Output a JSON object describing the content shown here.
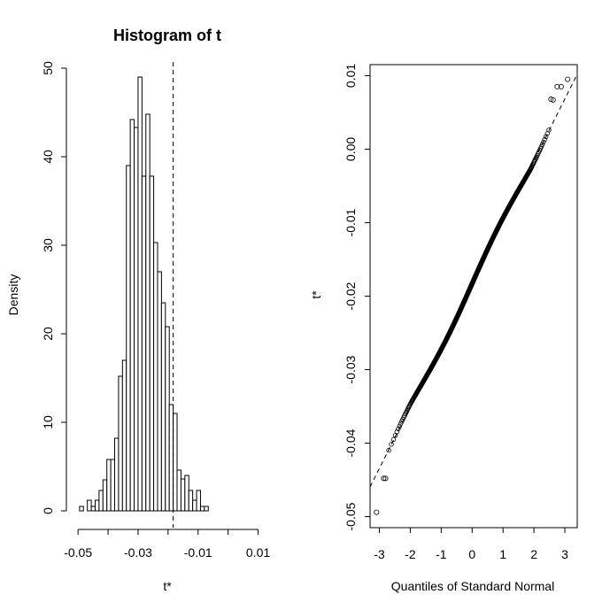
{
  "chart_data": [
    {
      "type": "bar",
      "title": "Histogram of t",
      "xlabel": "t*",
      "ylabel": "Density",
      "xlim": [
        -0.053,
        0.0125
      ],
      "ylim": [
        0,
        50
      ],
      "x_ticks": [
        -0.05,
        -0.03,
        -0.01,
        0.01
      ],
      "x_tick_labels": [
        "-0.05",
        "-0.03",
        "-0.01",
        "0.01"
      ],
      "y_ticks": [
        0,
        10,
        20,
        30,
        40,
        50
      ],
      "y_tick_labels": [
        "0",
        "10",
        "20",
        "30",
        "40",
        "50"
      ],
      "bin_width": 0.0013,
      "bin_start": -0.0508,
      "values": [
        0.0,
        0.5,
        0.0,
        1.2,
        0.5,
        1.2,
        2.3,
        3.5,
        5.8,
        5.8,
        8.2,
        15.2,
        17.0,
        39.0,
        44.2,
        43.3,
        49.0,
        37.8,
        44.8,
        37.8,
        30.3,
        27.0,
        23.5,
        20.8,
        12.0,
        11.0,
        4.6,
        3.6,
        4.0,
        2.3,
        1.2,
        2.3,
        0.5,
        0.5
      ],
      "reference_line_x": -0.0183,
      "grid": false
    },
    {
      "type": "scatter",
      "xlabel": "Quantiles of Standard Normal",
      "ylabel": "t*",
      "xlim": [
        -3.3,
        3.4
      ],
      "ylim": [
        -0.0515,
        0.0115
      ],
      "x_ticks": [
        -3,
        -2,
        -1,
        0,
        1,
        2,
        3
      ],
      "x_tick_labels": [
        "-3",
        "-2",
        "-1",
        "0",
        "1",
        "2",
        "3"
      ],
      "y_ticks": [
        -0.05,
        -0.04,
        -0.03,
        -0.02,
        -0.01,
        0.0,
        0.01
      ],
      "y_tick_labels": [
        "-0.05",
        "-0.04",
        "-0.03",
        "-0.02",
        "-0.01",
        "0.00",
        "0.01"
      ],
      "reference_line": {
        "intercept": -0.0183,
        "slope": 0.00838
      },
      "n_points": 999,
      "extreme_points": [
        {
          "x": -3.09,
          "y": -0.0494
        },
        {
          "x": -2.86,
          "y": -0.0448
        },
        {
          "x": -2.8,
          "y": -0.0448
        },
        {
          "x": 2.55,
          "y": 0.0068
        },
        {
          "x": 2.62,
          "y": 0.0067
        },
        {
          "x": 2.75,
          "y": 0.0085
        },
        {
          "x": 2.88,
          "y": 0.0085
        },
        {
          "x": 3.09,
          "y": 0.0095
        }
      ],
      "grid": false
    }
  ]
}
